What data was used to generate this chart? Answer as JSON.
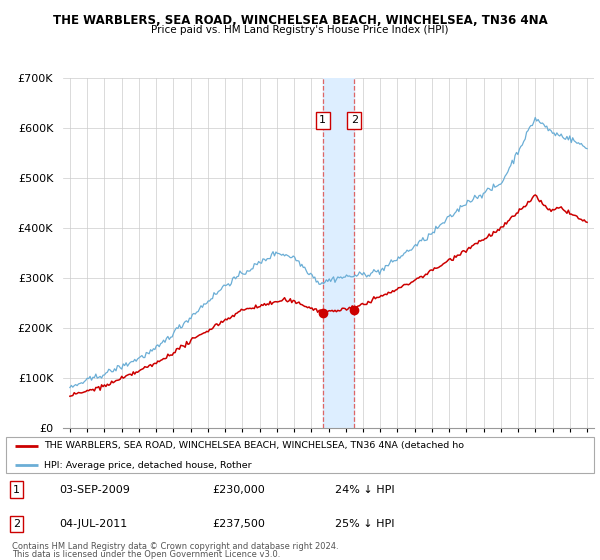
{
  "title1": "THE WARBLERS, SEA ROAD, WINCHELSEA BEACH, WINCHELSEA, TN36 4NA",
  "title2": "Price paid vs. HM Land Registry's House Price Index (HPI)",
  "legend_line1": "THE WARBLERS, SEA ROAD, WINCHELSEA BEACH, WINCHELSEA, TN36 4NA (detached ho",
  "legend_line2": "HPI: Average price, detached house, Rother",
  "footnote1": "Contains HM Land Registry data © Crown copyright and database right 2024.",
  "footnote2": "This data is licensed under the Open Government Licence v3.0.",
  "transaction1_label": "1",
  "transaction1_date": "03-SEP-2009",
  "transaction1_price": "£230,000",
  "transaction1_hpi": "24% ↓ HPI",
  "transaction2_label": "2",
  "transaction2_date": "04-JUL-2011",
  "transaction2_price": "£237,500",
  "transaction2_hpi": "25% ↓ HPI",
  "hpi_color": "#6baed6",
  "price_color": "#cc0000",
  "highlight_color": "#ddeeff",
  "vline_color": "#dd6666",
  "transaction1_x": 2009.67,
  "transaction2_x": 2011.5,
  "ylim_max": 700000,
  "ylim_min": 0,
  "bg_color": "#ffffff",
  "grid_color": "#cccccc"
}
